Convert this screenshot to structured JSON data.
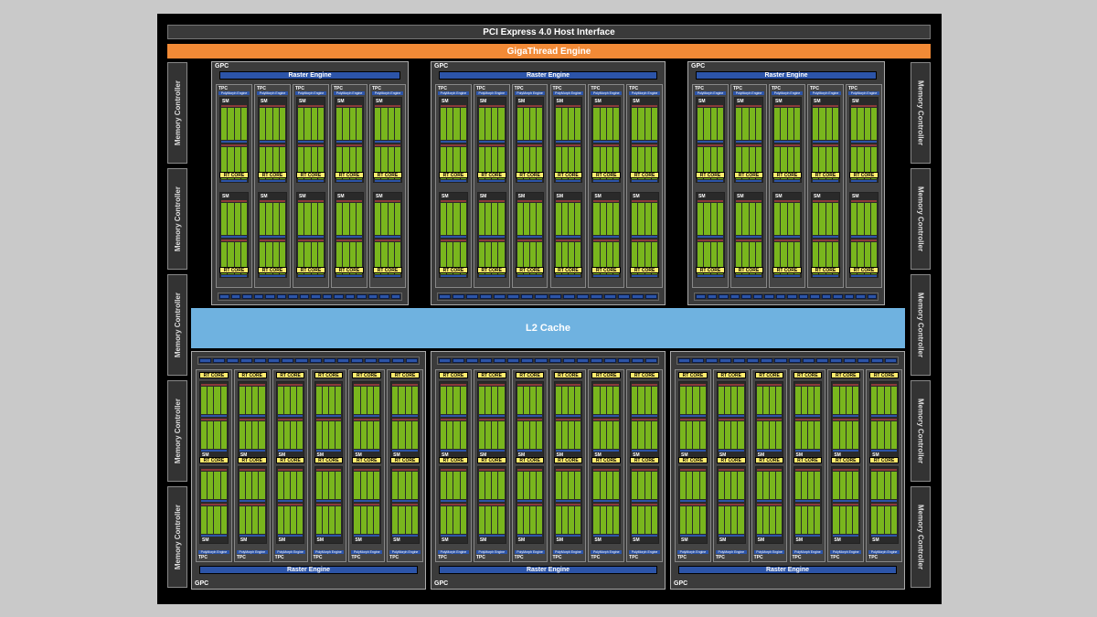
{
  "host_interface": "PCI Express 4.0 Host Interface",
  "gigathread": "GigaThread Engine",
  "l2_cache": "L2 Cache",
  "memory_controller": "Memory Controller",
  "gpc_label": "GPC",
  "raster_engine": "Raster Engine",
  "tpc_label": "TPC",
  "polymorph": "PolyMorph Engine",
  "sm_label": "SM",
  "rt_core": "RT CORE",
  "colors": {
    "background": "#c9c9c9",
    "chip": "#000000",
    "gigathread": "#f28a36",
    "l2": "#6fb2e0",
    "cuda_cores": "#79b61d",
    "rt_core": "#ffec6e",
    "engine_blue": "#2c54a8"
  }
}
